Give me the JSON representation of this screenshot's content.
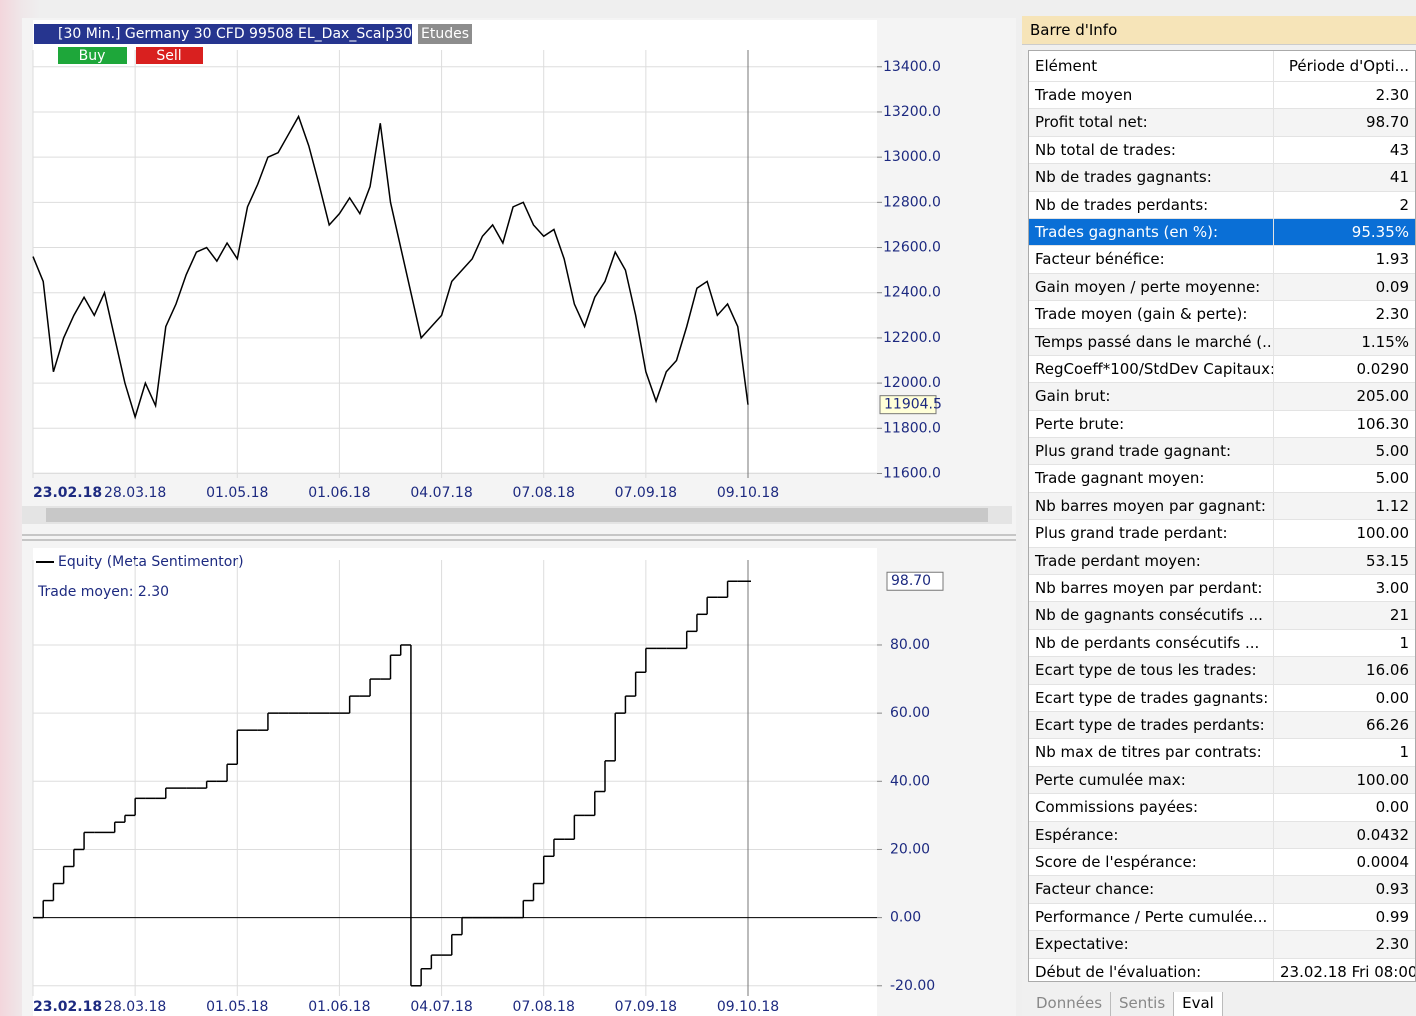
{
  "header": {
    "instrument": "[30 Min.] Germany 30 CFD  99508 EL_Dax_Scalp30",
    "studies": "Etudes",
    "buy": "Buy",
    "sell": "Sell"
  },
  "chart_data": [
    {
      "type": "line",
      "categories": [
        "23.02.18",
        null,
        null,
        null,
        null,
        null,
        null,
        null,
        null,
        null,
        "28.03.18",
        null,
        null,
        null,
        null,
        null,
        null,
        null,
        null,
        null,
        "01.05.18",
        null,
        null,
        null,
        null,
        null,
        null,
        null,
        null,
        null,
        "01.06.18",
        null,
        null,
        null,
        null,
        null,
        null,
        null,
        null,
        null,
        "04.07.18",
        null,
        null,
        null,
        null,
        null,
        null,
        null,
        null,
        null,
        "07.08.18",
        null,
        null,
        null,
        null,
        null,
        null,
        null,
        null,
        null,
        "07.09.18",
        null,
        null,
        null,
        null,
        null,
        null,
        null,
        null,
        null,
        "09.10.18"
      ],
      "values": [
        12560,
        12450,
        12050,
        12200,
        12300,
        12380,
        12300,
        12400,
        12200,
        12000,
        11850,
        12000,
        11900,
        12250,
        12350,
        12480,
        12580,
        12600,
        12540,
        12620,
        12550,
        12780,
        12880,
        13000,
        13020,
        13100,
        13180,
        13050,
        12880,
        12700,
        12750,
        12820,
        12750,
        12870,
        13150,
        12800,
        12600,
        12400,
        12200,
        12250,
        12300,
        12450,
        12500,
        12550,
        12650,
        12700,
        12620,
        12780,
        12800,
        12700,
        12650,
        12680,
        12550,
        12350,
        12250,
        12380,
        12450,
        12580,
        12500,
        12300,
        12050,
        11920,
        12050,
        12100,
        12250,
        12420,
        12450,
        12300,
        12350,
        12250,
        11904.5
      ],
      "value_labels": {
        "70": "11904.5"
      },
      "color": "#000000",
      "ylim": [
        11580,
        13430
      ],
      "yticks": [
        {
          "value": 11600,
          "label": "11600.0"
        },
        {
          "value": 11800,
          "label": "11800.0"
        },
        {
          "value": 12000,
          "label": "12000.0"
        },
        {
          "value": 12200,
          "label": "12200.0"
        },
        {
          "value": 12400,
          "label": "12400.0"
        },
        {
          "value": 12600,
          "label": "12600.0"
        },
        {
          "value": 12800,
          "label": "12800.0"
        },
        {
          "value": 13000,
          "label": "13000.0"
        },
        {
          "value": 13200,
          "label": "13200.0"
        },
        {
          "value": 13400,
          "label": "13400.0"
        }
      ],
      "grid": true
    },
    {
      "type": "step",
      "legend": "Equity (Meta Sentimentor)",
      "annotation": "Trade moyen: 2.30",
      "categories": [
        "23.02.18",
        null,
        null,
        null,
        null,
        null,
        null,
        null,
        null,
        null,
        "28.03.18",
        null,
        null,
        null,
        null,
        null,
        null,
        null,
        null,
        null,
        "01.05.18",
        null,
        null,
        null,
        null,
        null,
        null,
        null,
        null,
        null,
        "01.06.18",
        null,
        null,
        null,
        null,
        null,
        null,
        null,
        null,
        null,
        "04.07.18",
        null,
        null,
        null,
        null,
        null,
        null,
        null,
        null,
        null,
        "07.08.18",
        null,
        null,
        null,
        null,
        null,
        null,
        null,
        null,
        null,
        "07.09.18",
        null,
        null,
        null,
        null,
        null,
        null,
        null,
        null,
        null,
        "09.10.18"
      ],
      "values": [
        0,
        5,
        10,
        15,
        20,
        25,
        25,
        25,
        28,
        30,
        35,
        35,
        35,
        38,
        38,
        38,
        38,
        40,
        40,
        45,
        55,
        55,
        55,
        60,
        60,
        60,
        60,
        60,
        60,
        60,
        60,
        65,
        65,
        70,
        70,
        77,
        80,
        -20,
        -15,
        -11,
        -11,
        -5,
        0,
        0,
        0,
        0,
        0,
        0,
        5,
        10,
        18,
        23,
        23,
        30,
        30,
        37,
        46,
        60,
        65,
        72,
        79,
        79,
        79,
        79,
        84,
        89,
        94,
        94,
        98.7,
        98.7,
        98.7
      ],
      "value_labels": {
        "70": "98.70"
      },
      "color": "#000000",
      "ylim": [
        -23,
        102
      ],
      "yticks": [
        {
          "value": -20,
          "label": "-20.00"
        },
        {
          "value": 0,
          "label": "0.00"
        },
        {
          "value": 20,
          "label": "20.00"
        },
        {
          "value": 40,
          "label": "40.00"
        },
        {
          "value": 60,
          "label": "60.00"
        },
        {
          "value": 80,
          "label": "80.00"
        }
      ],
      "grid": true
    }
  ],
  "info_bar": {
    "title": "Barre d'Info",
    "header": [
      "Elément",
      "Période d'Opti..."
    ],
    "rows": [
      [
        "Trade moyen",
        "2.30"
      ],
      [
        "Profit total net:",
        "98.70"
      ],
      [
        "Nb total de trades:",
        "43"
      ],
      [
        "Nb de trades gagnants:",
        "41"
      ],
      [
        "Nb de trades perdants:",
        "2"
      ],
      [
        "Trades gagnants (en %):",
        "95.35%"
      ],
      [
        "Facteur bénéfice:",
        "1.93"
      ],
      [
        "Gain moyen / perte moyenne:",
        "0.09"
      ],
      [
        "Trade moyen (gain & perte):",
        "2.30"
      ],
      [
        "Temps passé dans le marché (...",
        "1.15%"
      ],
      [
        "RegCoeff*100/StdDev Capitaux:",
        "0.0290"
      ],
      [
        "Gain brut:",
        "205.00"
      ],
      [
        "Perte brute:",
        "106.30"
      ],
      [
        "Plus grand trade gagnant:",
        "5.00"
      ],
      [
        "Trade gagnant moyen:",
        "5.00"
      ],
      [
        "Nb barres moyen par gagnant:",
        "1.12"
      ],
      [
        "Plus grand trade perdant:",
        "100.00"
      ],
      [
        "Trade perdant moyen:",
        "53.15"
      ],
      [
        "Nb barres moyen par perdant:",
        "3.00"
      ],
      [
        "Nb de gagnants consécutifs ...",
        "21"
      ],
      [
        "Nb de perdants consécutifs ...",
        "1"
      ],
      [
        "Ecart type de tous les trades:",
        "16.06"
      ],
      [
        "Ecart type de trades gagnants:",
        "0.00"
      ],
      [
        "Ecart type de trades perdants:",
        "66.26"
      ],
      [
        "Nb max de titres par contrats:",
        "1"
      ],
      [
        "Perte cumulée max:",
        "100.00"
      ],
      [
        "Commissions payées:",
        "0.00"
      ],
      [
        "Espérance:",
        "0.0432"
      ],
      [
        "Score de l'espérance:",
        "0.0004"
      ],
      [
        "Facteur chance:",
        "0.93"
      ],
      [
        "Performance / Perte cumulée...",
        "0.99"
      ],
      [
        "Expectative:",
        "2.30"
      ],
      [
        "Début de l'évaluation:",
        "23.02.18 Fri  08:00"
      ]
    ],
    "selected_row": 5,
    "tabs": [
      "Données",
      "Sentis",
      "Eval"
    ]
  }
}
